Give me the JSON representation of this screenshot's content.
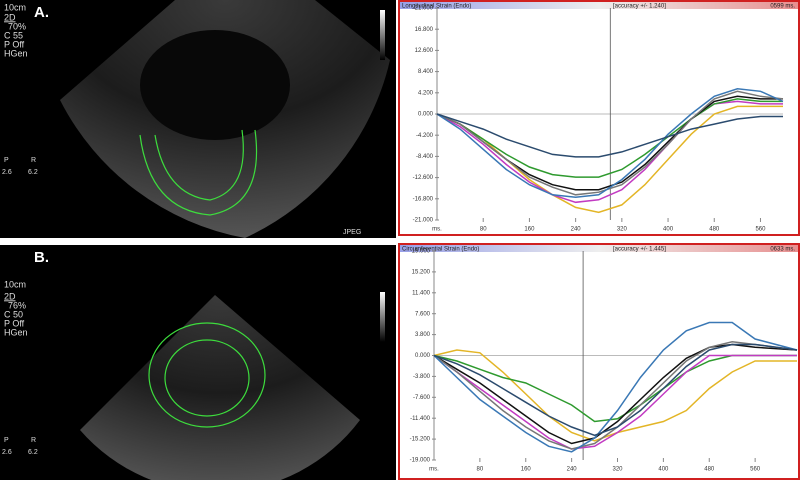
{
  "panels": [
    {
      "label": "A.",
      "depth": "10cm",
      "mode": "2D",
      "settings": [
        "70%",
        "C 55",
        "P Off",
        "HGen"
      ],
      "probe": [
        "P",
        "R"
      ],
      "scale": [
        "2.6",
        "6.2"
      ],
      "format": "JPEG"
    },
    {
      "label": "B.",
      "depth": "10cm",
      "mode": "2D",
      "settings": [
        "76%",
        "C 50",
        "P Off",
        "HGen"
      ],
      "probe": [
        "P",
        "R"
      ],
      "scale": [
        "2.6",
        "6.2"
      ]
    }
  ],
  "chart_data": [
    {
      "type": "line",
      "title": "Longitudinal Strain (Endo)",
      "accuracy": "[accuracy +/- 1.240]",
      "time": "0599 ms.",
      "xlabel": "ms.",
      "x": [
        0,
        40,
        80,
        120,
        160,
        200,
        240,
        280,
        320,
        360,
        400,
        440,
        480,
        520,
        560,
        599
      ],
      "xlim": [
        0,
        599
      ],
      "xticks": [
        80,
        160,
        240,
        320,
        400,
        480,
        560
      ],
      "cursor": 300,
      "ylim": [
        -21,
        21
      ],
      "yticks": [
        {
          "value": 21,
          "label": "21.000"
        },
        {
          "value": 16.8,
          "label": "16.800"
        },
        {
          "value": 12.6,
          "label": "12.600"
        },
        {
          "value": 8.4,
          "label": "8.400"
        },
        {
          "value": 4.2,
          "label": "4.200"
        },
        {
          "value": 0,
          "label": "0.000"
        },
        {
          "value": -4.2,
          "label": "-4.200"
        },
        {
          "value": -8.4,
          "label": "-8.400"
        },
        {
          "value": -12.6,
          "label": "-12.600"
        },
        {
          "value": -16.8,
          "label": "-16.800"
        },
        {
          "value": -21,
          "label": "-21.000"
        }
      ],
      "series": [
        {
          "color": "#e3b526",
          "values": [
            0,
            -2,
            -5,
            -9,
            -13,
            -16,
            -18.5,
            -19.5,
            -18,
            -14,
            -9,
            -4,
            0,
            1.5,
            1.5,
            1.5
          ]
        },
        {
          "color": "#c23bc2",
          "values": [
            0,
            -2.5,
            -6,
            -10,
            -13.5,
            -16,
            -17.5,
            -17,
            -15,
            -11,
            -6,
            -1,
            2,
            2.5,
            2,
            2
          ]
        },
        {
          "color": "#2e9a2e",
          "values": [
            0,
            -2,
            -5,
            -8,
            -10.5,
            -12,
            -12.5,
            -12.5,
            -11,
            -8,
            -4.5,
            -1,
            2,
            3,
            2.5,
            2.5
          ]
        },
        {
          "color": "#111111",
          "values": [
            0,
            -2,
            -5.5,
            -9,
            -12,
            -14,
            -15,
            -15,
            -13.5,
            -10,
            -5.5,
            -1,
            2.5,
            3.5,
            3,
            3
          ]
        },
        {
          "color": "#777777",
          "values": [
            0,
            -2,
            -5.5,
            -9,
            -12.5,
            -14.5,
            -16,
            -15.5,
            -14,
            -10.5,
            -6,
            -1,
            3,
            4.5,
            3.5,
            3
          ]
        },
        {
          "color": "#3a78b5",
          "values": [
            0,
            -3,
            -7,
            -11,
            -14,
            -16,
            -16.5,
            -16,
            -13,
            -9,
            -4,
            0,
            3.5,
            5,
            4.5,
            2.5
          ]
        },
        {
          "color": "#2b4b6e",
          "values": [
            0,
            -1.5,
            -3,
            -5,
            -6.5,
            -8,
            -8.5,
            -8.5,
            -7.5,
            -6,
            -4.5,
            -3,
            -2,
            -1,
            -0.5,
            -0.5
          ]
        }
      ]
    },
    {
      "type": "line",
      "title": "Circumferential Strain (Endo)",
      "accuracy": "[accuracy +/- 1.445]",
      "time": "0633 ms.",
      "xlabel": "ms.",
      "x": [
        0,
        40,
        80,
        120,
        160,
        200,
        240,
        280,
        320,
        360,
        400,
        440,
        480,
        520,
        560,
        633
      ],
      "xlim": [
        0,
        633
      ],
      "xticks": [
        80,
        160,
        240,
        320,
        400,
        480,
        560
      ],
      "cursor": 260,
      "ylim": [
        -19,
        19
      ],
      "yticks": [
        {
          "value": 19,
          "label": "19.000"
        },
        {
          "value": 15.2,
          "label": "15.200"
        },
        {
          "value": 11.4,
          "label": "11.400"
        },
        {
          "value": 7.6,
          "label": "7.600"
        },
        {
          "value": 3.8,
          "label": "3.800"
        },
        {
          "value": 0,
          "label": "0.000"
        },
        {
          "value": -3.8,
          "label": "-3.800"
        },
        {
          "value": -7.6,
          "label": "-7.600"
        },
        {
          "value": -11.4,
          "label": "-11.400"
        },
        {
          "value": -15.2,
          "label": "-15.200"
        },
        {
          "value": -19,
          "label": "-19.000"
        }
      ],
      "series": [
        {
          "color": "#e3b526",
          "values": [
            0,
            1,
            0.5,
            -3,
            -7,
            -11,
            -14,
            -15.5,
            -14,
            -13,
            -12,
            -10,
            -6,
            -3,
            -1,
            -1
          ]
        },
        {
          "color": "#2e9a2e",
          "values": [
            0,
            -1,
            -2.5,
            -4,
            -5,
            -7,
            -9,
            -12,
            -11.5,
            -9,
            -6,
            -3,
            -1,
            0,
            0,
            0
          ]
        },
        {
          "color": "#c23bc2",
          "values": [
            0,
            -3,
            -6,
            -9,
            -12,
            -15,
            -17,
            -16.5,
            -14,
            -11,
            -7,
            -3,
            0,
            0,
            0,
            0
          ]
        },
        {
          "color": "#111111",
          "values": [
            0,
            -2.5,
            -5,
            -8,
            -11,
            -14,
            -16,
            -15,
            -12,
            -8,
            -4,
            -0.5,
            1.5,
            2,
            1.5,
            1
          ]
        },
        {
          "color": "#777777",
          "values": [
            0,
            -3,
            -6.5,
            -10,
            -13,
            -15.5,
            -17,
            -16,
            -13,
            -9,
            -5,
            -1,
            1.5,
            2.5,
            2,
            1
          ]
        },
        {
          "color": "#3a78b5",
          "values": [
            0,
            -4,
            -8,
            -11,
            -14,
            -16.5,
            -17.5,
            -15,
            -10,
            -4,
            1,
            4.5,
            6,
            6,
            3,
            1
          ]
        },
        {
          "color": "#2b4b6e",
          "values": [
            0,
            -1.5,
            -3.5,
            -6,
            -8.5,
            -11,
            -13,
            -14.5,
            -13,
            -10,
            -6,
            -2,
            1,
            2,
            2,
            1
          ]
        }
      ]
    }
  ]
}
